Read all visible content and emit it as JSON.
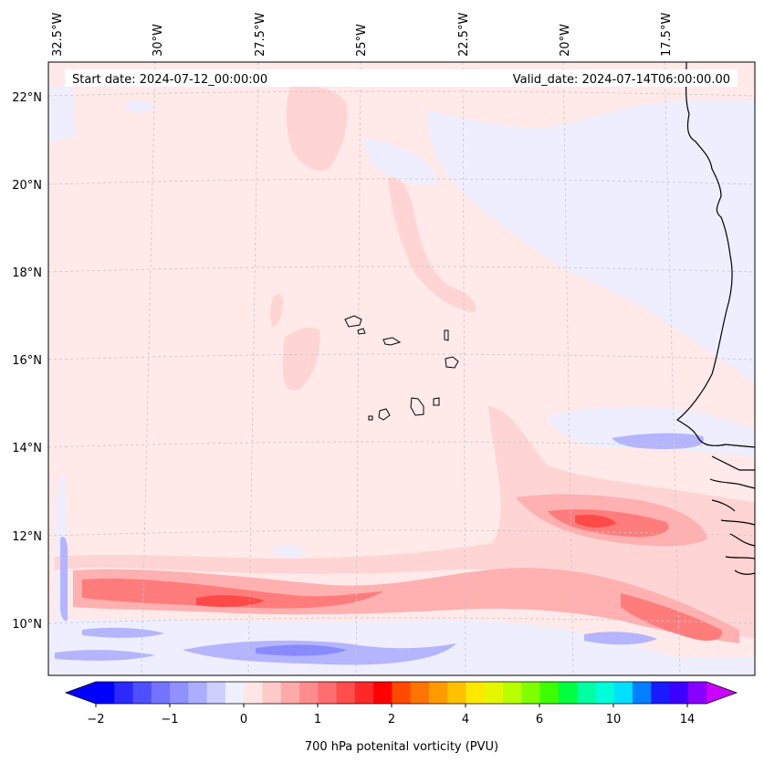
{
  "chart_data": {
    "type": "heatmap",
    "title": "",
    "start_date_text": "Start date: 2024-07-12_00:00:00",
    "valid_date_text": "Valid_date: 2024-07-14T06:00:00.00",
    "colorbar_label": "700 hPa potenital vorticity (PVU)",
    "x_ticks": [
      "32.5°W",
      "30°W",
      "27.5°W",
      "25°W",
      "22.5°W",
      "20°W",
      "17.5°W"
    ],
    "y_ticks": [
      "22°N",
      "20°N",
      "18°N",
      "16°N",
      "14°N",
      "12°N",
      "10°N"
    ],
    "colorbar_ticks": [
      "−2",
      "−1",
      "0",
      "1",
      "2",
      "4",
      "6",
      "10",
      "14"
    ],
    "colors": {
      "background": "#ffe9e9",
      "frame": "#000000",
      "grid": "#c8c8c8",
      "coast": "#000000",
      "light_blue": "#eeeeff",
      "mid_blue": "#b4b4ff",
      "blue": "#8a8aff",
      "light_pink": "#ffd4d4",
      "pink": "#ffb0b0",
      "salmon": "#ff7c7c",
      "red": "#ff4a4a"
    },
    "colormap": [
      "#0000ff",
      "#2a2aff",
      "#4f4fff",
      "#7373ff",
      "#9090ff",
      "#adadff",
      "#cfcfff",
      "#efefff",
      "#ffe6e6",
      "#ffcaca",
      "#ffaaaa",
      "#ff8c8c",
      "#ff6e6e",
      "#ff4e4e",
      "#ff2828",
      "#ff0000",
      "#ff4a00",
      "#ff7400",
      "#ff9b00",
      "#ffc000",
      "#ffe800",
      "#e6f500",
      "#b8ff00",
      "#80ff00",
      "#3cff00",
      "#00ff40",
      "#00ffa0",
      "#00ffd8",
      "#00e0ff",
      "#0080ff",
      "#1a1aff",
      "#3c00ff",
      "#8800ff"
    ],
    "extend_colors": {
      "min": "#0000ff",
      "max": "#cc00ff"
    }
  }
}
